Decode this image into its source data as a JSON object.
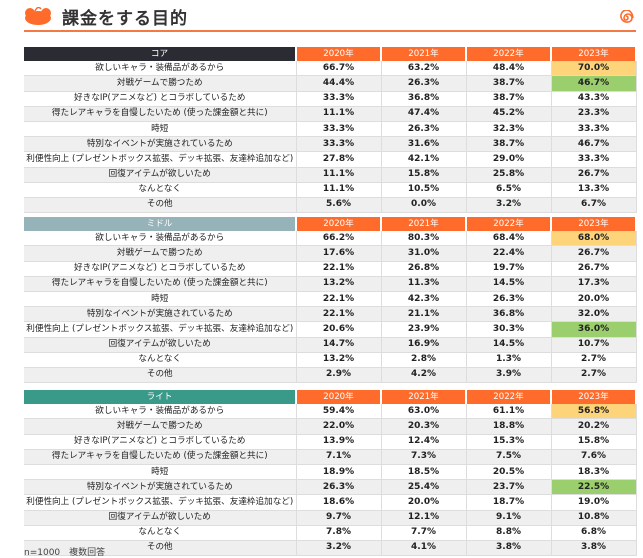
{
  "title": "課金をする目的",
  "colors": {
    "accent": "#ff6b2b",
    "core": "#2b2b33",
    "middle": "#95b3b9",
    "light": "#3a9a8a",
    "highlight_max": "#fdd47a",
    "highlight_up": "#9bcf6e"
  },
  "years": [
    "2020年",
    "2021年",
    "2022年",
    "2023年"
  ],
  "rows": [
    "欲しいキャラ・装備品があるから",
    "対戦ゲームで勝つため",
    "好きなIP(アニメなど) とコラボしているため",
    "得たレアキャラを自慢したいため (使った課金額と共に)",
    "時短",
    "特別なイベントが実施されているため",
    "利便性向上 (プレゼントボックス拡張、デッキ拡張、友達枠追加など)",
    "回復アイテムが欲しいため",
    "なんとなく",
    "その他"
  ],
  "tables": [
    {
      "segment": "コア",
      "color": "#2b2b33",
      "highlights": {
        "0": "yellow",
        "1": "green"
      },
      "values": [
        [
          "66.7%",
          "63.2%",
          "48.4%",
          "70.0%"
        ],
        [
          "44.4%",
          "26.3%",
          "38.7%",
          "46.7%"
        ],
        [
          "33.3%",
          "36.8%",
          "38.7%",
          "43.3%"
        ],
        [
          "11.1%",
          "47.4%",
          "45.2%",
          "23.3%"
        ],
        [
          "33.3%",
          "26.3%",
          "32.3%",
          "33.3%"
        ],
        [
          "33.3%",
          "31.6%",
          "38.7%",
          "46.7%"
        ],
        [
          "27.8%",
          "42.1%",
          "29.0%",
          "33.3%"
        ],
        [
          "11.1%",
          "15.8%",
          "25.8%",
          "26.7%"
        ],
        [
          "11.1%",
          "10.5%",
          "6.5%",
          "13.3%"
        ],
        [
          "5.6%",
          "0.0%",
          "3.2%",
          "6.7%"
        ]
      ]
    },
    {
      "segment": "ミドル",
      "color": "#95b3b9",
      "highlights": {
        "0": "yellow",
        "6": "green"
      },
      "values": [
        [
          "66.2%",
          "80.3%",
          "68.4%",
          "68.0%"
        ],
        [
          "17.6%",
          "31.0%",
          "22.4%",
          "26.7%"
        ],
        [
          "22.1%",
          "26.8%",
          "19.7%",
          "26.7%"
        ],
        [
          "13.2%",
          "11.3%",
          "14.5%",
          "17.3%"
        ],
        [
          "22.1%",
          "42.3%",
          "26.3%",
          "20.0%"
        ],
        [
          "22.1%",
          "21.1%",
          "36.8%",
          "32.0%"
        ],
        [
          "20.6%",
          "23.9%",
          "30.3%",
          "36.0%"
        ],
        [
          "14.7%",
          "16.9%",
          "14.5%",
          "10.7%"
        ],
        [
          "13.2%",
          "2.8%",
          "1.3%",
          "2.7%"
        ],
        [
          "2.9%",
          "4.2%",
          "3.9%",
          "2.7%"
        ]
      ]
    },
    {
      "segment": "ライト",
      "color": "#3a9a8a",
      "highlights": {
        "0": "yellow",
        "5": "green"
      },
      "values": [
        [
          "59.4%",
          "63.0%",
          "61.1%",
          "56.8%"
        ],
        [
          "22.0%",
          "20.3%",
          "18.8%",
          "20.2%"
        ],
        [
          "13.9%",
          "12.4%",
          "15.3%",
          "15.8%"
        ],
        [
          "7.1%",
          "7.3%",
          "7.5%",
          "7.6%"
        ],
        [
          "18.9%",
          "18.5%",
          "20.5%",
          "18.3%"
        ],
        [
          "26.3%",
          "25.4%",
          "23.7%",
          "22.5%"
        ],
        [
          "18.6%",
          "20.0%",
          "18.7%",
          "19.0%"
        ],
        [
          "9.7%",
          "12.1%",
          "9.1%",
          "10.8%"
        ],
        [
          "7.8%",
          "7.7%",
          "8.8%",
          "6.8%"
        ],
        [
          "3.2%",
          "4.1%",
          "3.8%",
          "3.8%"
        ]
      ]
    }
  ],
  "note": "n=1000　複数回答"
}
